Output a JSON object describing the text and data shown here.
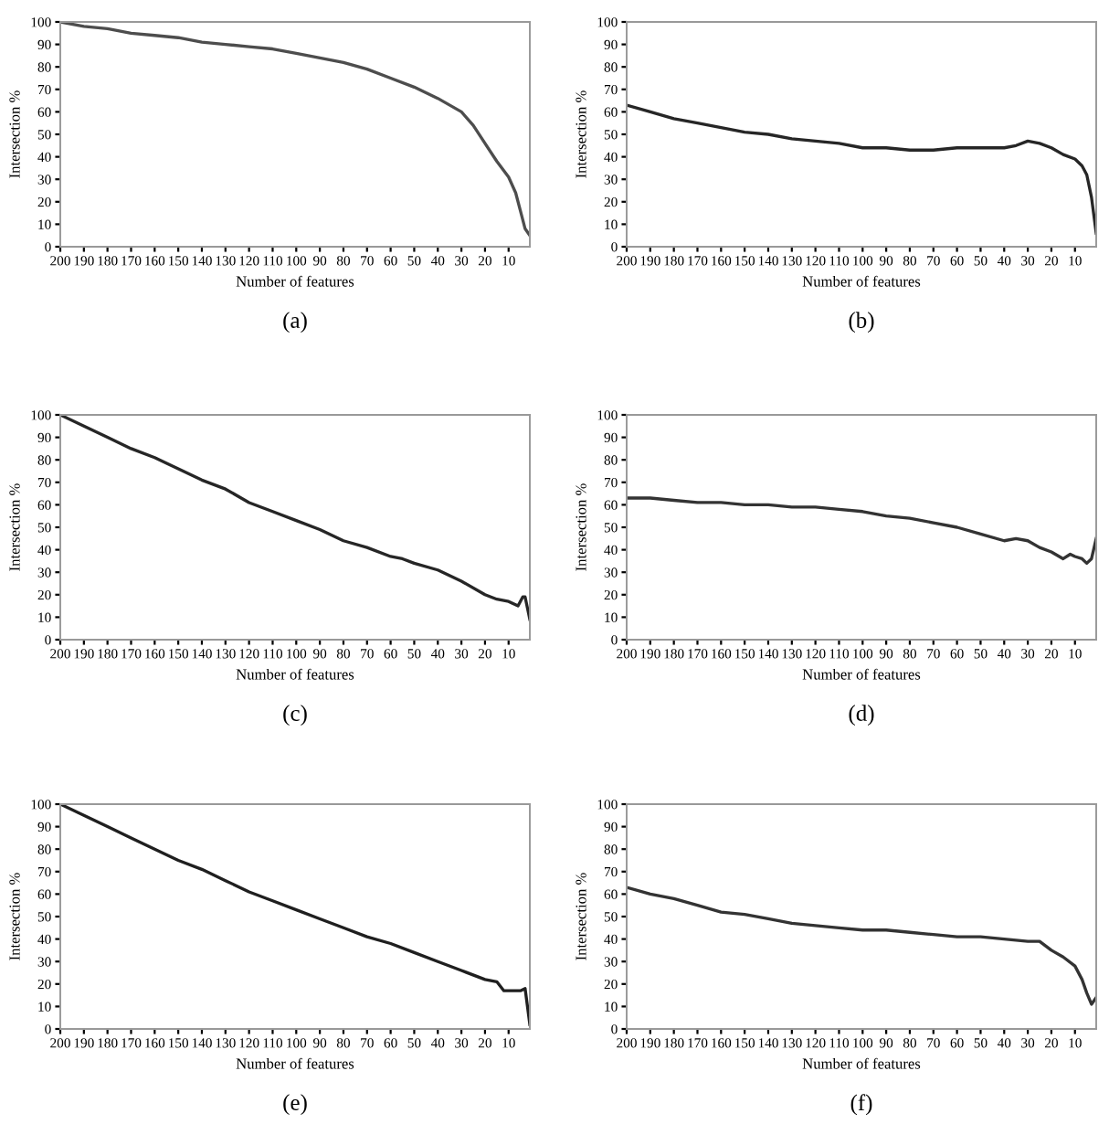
{
  "chart_data": [
    {
      "type": "line",
      "xlabel": "Number of features",
      "ylabel": "Intersection %",
      "annotations": [
        "(a)"
      ],
      "xlim": [
        200,
        1
      ],
      "xticks": [
        200,
        190,
        180,
        170,
        160,
        150,
        140,
        130,
        120,
        110,
        100,
        90,
        80,
        70,
        60,
        50,
        40,
        30,
        20,
        10
      ],
      "ylim": [
        0,
        100
      ],
      "yticks": [
        0,
        10,
        20,
        30,
        40,
        50,
        60,
        70,
        80,
        90,
        100
      ],
      "grid": false,
      "legend": false,
      "series": [
        {
          "color": "#4d4d4d",
          "x": [
            200,
            190,
            180,
            170,
            160,
            150,
            140,
            130,
            120,
            110,
            100,
            90,
            80,
            70,
            60,
            50,
            40,
            30,
            25,
            20,
            15,
            10,
            7,
            5,
            3,
            1
          ],
          "values": [
            100,
            98,
            97,
            95,
            94,
            93,
            91,
            90,
            89,
            88,
            86,
            84,
            82,
            79,
            75,
            71,
            66,
            60,
            54,
            46,
            38,
            31,
            24,
            16,
            8,
            5
          ]
        }
      ]
    },
    {
      "type": "line",
      "xlabel": "Number of features",
      "ylabel": "Intersection %",
      "annotations": [
        "(b)"
      ],
      "xlim": [
        200,
        1
      ],
      "xticks": [
        200,
        190,
        180,
        170,
        160,
        150,
        140,
        130,
        120,
        110,
        100,
        90,
        80,
        70,
        60,
        50,
        40,
        30,
        20,
        10
      ],
      "ylim": [
        0,
        100
      ],
      "yticks": [
        0,
        10,
        20,
        30,
        40,
        50,
        60,
        70,
        80,
        90,
        100
      ],
      "grid": false,
      "legend": false,
      "series": [
        {
          "color": "#262626",
          "x": [
            200,
            190,
            180,
            170,
            160,
            150,
            140,
            130,
            120,
            110,
            100,
            90,
            80,
            70,
            60,
            50,
            40,
            35,
            30,
            25,
            20,
            15,
            10,
            7,
            5,
            3,
            1
          ],
          "values": [
            63,
            60,
            57,
            55,
            53,
            51,
            50,
            48,
            47,
            46,
            44,
            44,
            43,
            43,
            44,
            44,
            44,
            45,
            47,
            46,
            44,
            41,
            39,
            36,
            32,
            22,
            6
          ]
        }
      ]
    },
    {
      "type": "line",
      "xlabel": "Number of features",
      "ylabel": "Intersection %",
      "annotations": [
        "(c)"
      ],
      "xlim": [
        200,
        1
      ],
      "xticks": [
        200,
        190,
        180,
        170,
        160,
        150,
        140,
        130,
        120,
        110,
        100,
        90,
        80,
        70,
        60,
        50,
        40,
        30,
        20,
        10
      ],
      "ylim": [
        0,
        100
      ],
      "yticks": [
        0,
        10,
        20,
        30,
        40,
        50,
        60,
        70,
        80,
        90,
        100
      ],
      "grid": false,
      "legend": false,
      "series": [
        {
          "color": "#262626",
          "x": [
            200,
            190,
            180,
            170,
            160,
            150,
            140,
            130,
            120,
            110,
            100,
            90,
            80,
            70,
            60,
            55,
            50,
            40,
            30,
            20,
            15,
            10,
            6,
            4,
            3,
            1
          ],
          "values": [
            100,
            95,
            90,
            85,
            81,
            76,
            71,
            67,
            61,
            57,
            53,
            49,
            44,
            41,
            37,
            36,
            34,
            31,
            26,
            20,
            18,
            17,
            15,
            19,
            19,
            9
          ]
        }
      ]
    },
    {
      "type": "line",
      "xlabel": "Number of features",
      "ylabel": "Intersection %",
      "annotations": [
        "(d)"
      ],
      "xlim": [
        200,
        1
      ],
      "xticks": [
        200,
        190,
        180,
        170,
        160,
        150,
        140,
        130,
        120,
        110,
        100,
        90,
        80,
        70,
        60,
        50,
        40,
        30,
        20,
        10
      ],
      "ylim": [
        0,
        100
      ],
      "yticks": [
        0,
        10,
        20,
        30,
        40,
        50,
        60,
        70,
        80,
        90,
        100
      ],
      "grid": false,
      "legend": false,
      "series": [
        {
          "color": "#333333",
          "x": [
            200,
            190,
            180,
            170,
            160,
            150,
            140,
            130,
            120,
            110,
            100,
            90,
            80,
            70,
            60,
            50,
            40,
            35,
            30,
            25,
            20,
            15,
            12,
            10,
            7,
            5,
            3,
            1
          ],
          "values": [
            63,
            63,
            62,
            61,
            61,
            60,
            60,
            59,
            59,
            58,
            57,
            55,
            54,
            52,
            50,
            47,
            44,
            45,
            44,
            41,
            39,
            36,
            38,
            37,
            36,
            34,
            36,
            45
          ]
        }
      ]
    },
    {
      "type": "line",
      "xlabel": "Number of features",
      "ylabel": "Intersection %",
      "annotations": [
        "(e)"
      ],
      "xlim": [
        200,
        1
      ],
      "xticks": [
        200,
        190,
        180,
        170,
        160,
        150,
        140,
        130,
        120,
        110,
        100,
        90,
        80,
        70,
        60,
        50,
        40,
        30,
        20,
        10
      ],
      "ylim": [
        0,
        100
      ],
      "yticks": [
        0,
        10,
        20,
        30,
        40,
        50,
        60,
        70,
        80,
        90,
        100
      ],
      "grid": false,
      "legend": false,
      "series": [
        {
          "color": "#1f1f1f",
          "x": [
            200,
            190,
            180,
            170,
            160,
            150,
            140,
            130,
            120,
            110,
            100,
            90,
            80,
            70,
            60,
            50,
            40,
            30,
            20,
            15,
            12,
            8,
            5,
            3,
            1
          ],
          "values": [
            100,
            95,
            90,
            85,
            80,
            75,
            71,
            66,
            61,
            57,
            53,
            49,
            45,
            41,
            38,
            34,
            30,
            26,
            22,
            21,
            17,
            17,
            17,
            18,
            2
          ]
        }
      ]
    },
    {
      "type": "line",
      "xlabel": "Number of features",
      "ylabel": "Intersection %",
      "annotations": [
        "(f)"
      ],
      "xlim": [
        200,
        1
      ],
      "xticks": [
        200,
        190,
        180,
        170,
        160,
        150,
        140,
        130,
        120,
        110,
        100,
        90,
        80,
        70,
        60,
        50,
        40,
        30,
        20,
        10
      ],
      "ylim": [
        0,
        100
      ],
      "yticks": [
        0,
        10,
        20,
        30,
        40,
        50,
        60,
        70,
        80,
        90,
        100
      ],
      "grid": false,
      "legend": false,
      "series": [
        {
          "color": "#333333",
          "x": [
            200,
            190,
            180,
            170,
            160,
            150,
            140,
            130,
            120,
            110,
            100,
            90,
            80,
            70,
            60,
            50,
            40,
            30,
            25,
            20,
            15,
            10,
            7,
            5,
            3,
            1
          ],
          "values": [
            63,
            60,
            58,
            55,
            52,
            51,
            49,
            47,
            46,
            45,
            44,
            44,
            43,
            42,
            41,
            41,
            40,
            39,
            39,
            35,
            32,
            28,
            22,
            16,
            11,
            14
          ]
        }
      ]
    }
  ]
}
